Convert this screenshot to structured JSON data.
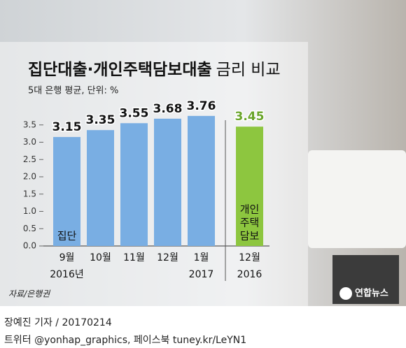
{
  "chart_data": {
    "type": "bar",
    "title": [
      "집단대출·개인주택담보대출",
      "금리 비교"
    ],
    "subtitle": "5대 은행 평균, 단위: %",
    "categories": [
      "9월",
      "10월",
      "11월",
      "12월",
      "1월",
      "12월"
    ],
    "year_labels": [
      "2016년",
      null,
      null,
      null,
      "2017",
      "2016"
    ],
    "bar_labels": [
      [
        "집단"
      ],
      [],
      [],
      [],
      [],
      [
        "개인",
        "주택",
        "담보"
      ]
    ],
    "values": [
      3.15,
      3.35,
      3.55,
      3.68,
      3.76,
      3.45
    ],
    "colors": [
      "#79aee3",
      "#79aee3",
      "#79aee3",
      "#79aee3",
      "#79aee3",
      "#8dc63f"
    ],
    "ylim": [
      0,
      4
    ],
    "yticks": [
      {
        "value": 0,
        "label": "0.0"
      },
      0.5,
      {
        "value": 1,
        "label": "1.0"
      },
      1.5,
      {
        "value": 2,
        "label": "2.0"
      },
      2.5,
      {
        "value": 3,
        "label": "3.0"
      },
      3.5
    ],
    "grid": false,
    "source": "자료/은행권",
    "logo": "연합뉴스",
    "byline": "장예진 기자 / 20170214",
    "social": "트위터 @yonhap_graphics, 페이스북 tuney.kr/LeYN1"
  }
}
